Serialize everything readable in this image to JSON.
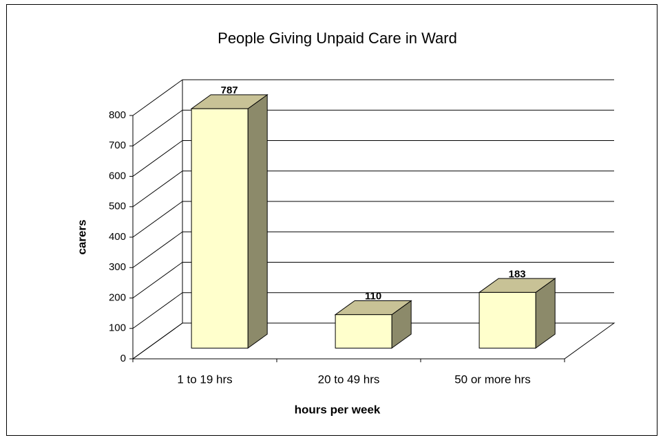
{
  "chart_data": {
    "type": "bar3d",
    "title": "People Giving Unpaid Care in Ward",
    "categories": [
      "1 to 19 hrs",
      "20 to 49 hrs",
      "50 or more hrs"
    ],
    "values": [
      787,
      110,
      183
    ],
    "color": "#ffffcc",
    "ylim": [
      0,
      800
    ],
    "yticks": [
      0,
      100,
      200,
      300,
      400,
      500,
      600,
      700,
      800
    ],
    "grid": true,
    "xlabel": "hours per week",
    "ylabel": "carers"
  }
}
